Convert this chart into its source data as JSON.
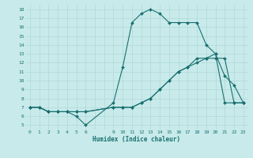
{
  "xlabel": "Humidex (Indice chaleur)",
  "bg_color": "#c8eaea",
  "line_color": "#1a7070",
  "grid_color": "#b0d8d8",
  "xlim": [
    -0.5,
    23.5
  ],
  "ylim": [
    4.5,
    18.5
  ],
  "xtick_positions": [
    0,
    1,
    2,
    3,
    4,
    5,
    6,
    7,
    8,
    9,
    10,
    11,
    12,
    13,
    14,
    15,
    16,
    17,
    18,
    19,
    20,
    21,
    22,
    23
  ],
  "xtick_labels": [
    "0",
    "1",
    "2",
    "3",
    "4",
    "5",
    "6",
    "",
    "",
    "9",
    "10",
    "11",
    "12",
    "13",
    "14",
    "15",
    "16",
    "17",
    "18",
    "19",
    "20",
    "21",
    "22",
    "23"
  ],
  "ytick_positions": [
    5,
    6,
    7,
    8,
    9,
    10,
    11,
    12,
    13,
    14,
    15,
    16,
    17,
    18
  ],
  "ytick_labels": [
    "5",
    "6",
    "7",
    "8",
    "9",
    "10",
    "11",
    "12",
    "13",
    "14",
    "15",
    "16",
    "17",
    "18"
  ],
  "line1_x": [
    0,
    1,
    2,
    3,
    4,
    5,
    6,
    9,
    10,
    11,
    12,
    13,
    14,
    15,
    16,
    17,
    18,
    19,
    20,
    21,
    22,
    23
  ],
  "line1_y": [
    7.0,
    7.0,
    6.5,
    6.5,
    6.5,
    6.0,
    5.0,
    7.5,
    11.5,
    16.5,
    17.5,
    18.0,
    17.5,
    16.5,
    16.5,
    16.5,
    16.5,
    14.0,
    13.0,
    10.5,
    9.5,
    7.5
  ],
  "line2_x": [
    0,
    1,
    2,
    3,
    4,
    5,
    6,
    9,
    10,
    11,
    12,
    13,
    14,
    15,
    16,
    17,
    18,
    19,
    20,
    21,
    22,
    23
  ],
  "line2_y": [
    7.0,
    7.0,
    6.5,
    6.5,
    6.5,
    6.5,
    6.5,
    7.0,
    7.0,
    7.0,
    7.5,
    8.0,
    9.0,
    10.0,
    11.0,
    11.5,
    12.0,
    12.5,
    13.0,
    7.5,
    7.5,
    7.5
  ],
  "line3_x": [
    0,
    1,
    2,
    3,
    4,
    5,
    6,
    9,
    10,
    11,
    12,
    13,
    14,
    15,
    16,
    17,
    18,
    19,
    20,
    21,
    22,
    23
  ],
  "line3_y": [
    7.0,
    7.0,
    6.5,
    6.5,
    6.5,
    6.5,
    6.5,
    7.0,
    7.0,
    7.0,
    7.5,
    8.0,
    9.0,
    10.0,
    11.0,
    11.5,
    12.5,
    12.5,
    12.5,
    12.5,
    7.5,
    7.5
  ]
}
